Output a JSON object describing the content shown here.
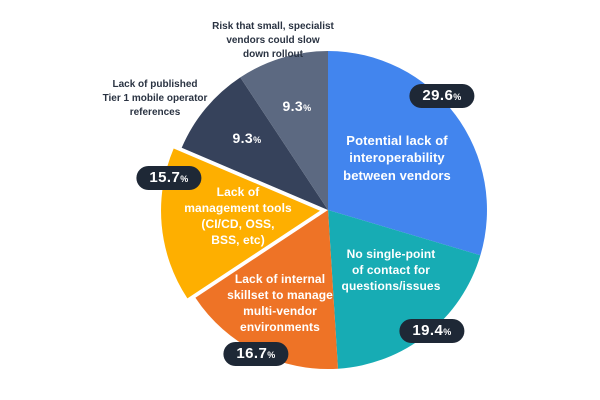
{
  "colors": {
    "background": "#ffffff",
    "badge_bg": "#1e2836",
    "badge_text": "#ffffff",
    "inside_label_text": "#ffffff",
    "outside_label_text": "#2a3342"
  },
  "chart_data": {
    "type": "pie",
    "title": "",
    "start_angle_deg": 0,
    "direction": "clockwise",
    "legend_position": "none",
    "percent_sign": "%",
    "segments": [
      {
        "name": "interoperability",
        "label": "Potential lack of\ninteroperability\nbetween vendors",
        "value": 29.6,
        "color": "#4285ee",
        "exploded": false,
        "label_placement": "inside"
      },
      {
        "name": "single-point-contact",
        "label": "No single-point\nof contact for\nquestions/issues",
        "value": 19.4,
        "color": "#17acb4",
        "exploded": false,
        "label_placement": "inside"
      },
      {
        "name": "internal-skillset",
        "label": "Lack of internal\nskillset to manage\nmulti-vendor\nenvironments",
        "value": 16.7,
        "color": "#ee7326",
        "exploded": false,
        "label_placement": "inside"
      },
      {
        "name": "management-tools",
        "label": "Lack of\nmanagement tools\n(CI/CD, OSS,\nBSS, etc)",
        "value": 15.7,
        "color": "#feaf00",
        "exploded": true,
        "label_placement": "inside"
      },
      {
        "name": "tier1-references",
        "label": "Lack of published\nTier 1 mobile operator\nreferences",
        "value": 9.3,
        "color": "#36425b",
        "exploded": false,
        "label_placement": "outside"
      },
      {
        "name": "specialist-vendor-risk",
        "label": "Risk that small, specialist\nvendors could slow\ndown rollout",
        "value": 9.3,
        "color": "#5c6981",
        "exploded": false,
        "label_placement": "outside"
      }
    ]
  }
}
